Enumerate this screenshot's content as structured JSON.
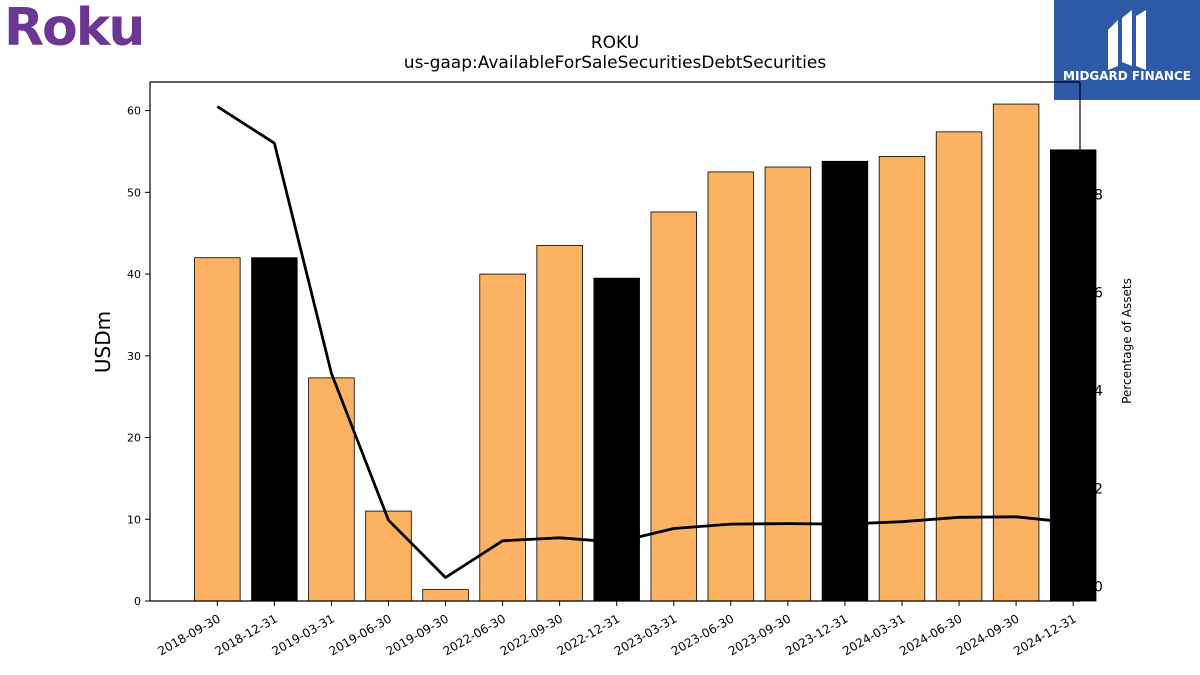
{
  "branding": {
    "left_logo_text": "Roku",
    "left_logo_color": "#6c3794",
    "right_logo_text": "MIDGARD FINANCE",
    "right_logo_bg": "#2e5aa8"
  },
  "chart_data": {
    "type": "bar",
    "title": "ROKU",
    "subtitle": "us-gaap:AvailableForSaleSecuritiesDebtSecurities",
    "ylabel": "USDm",
    "y2label": "Percentage of Assets",
    "categories": [
      "2018-09-30",
      "2018-12-31",
      "2019-03-31",
      "2019-06-30",
      "2019-09-30",
      "2022-06-30",
      "2022-09-30",
      "2022-12-31",
      "2023-03-31",
      "2023-06-30",
      "2023-09-30",
      "2023-12-31",
      "2024-03-31",
      "2024-06-30",
      "2024-09-30",
      "2024-12-31"
    ],
    "series": [
      {
        "type": "bar",
        "values": [
          42.0,
          42.0,
          27.3,
          11.0,
          1.4,
          40.0,
          43.5,
          39.5,
          47.6,
          52.5,
          53.1,
          53.8,
          54.4,
          57.4,
          60.8,
          55.2
        ]
      },
      {
        "type": "line",
        "axis": "right",
        "values": [
          9.8,
          9.05,
          4.35,
          1.35,
          0.18,
          0.93,
          0.99,
          0.9,
          1.18,
          1.27,
          1.28,
          1.27,
          1.32,
          1.41,
          1.42,
          1.3
        ]
      }
    ],
    "bar_colors": [
      "#fbb363",
      "#000000",
      "#fbb363",
      "#fbb363",
      "#fbb363",
      "#fbb363",
      "#fbb363",
      "#000000",
      "#fbb363",
      "#fbb363",
      "#fbb363",
      "#000000",
      "#fbb363",
      "#fbb363",
      "#fbb363",
      "#000000"
    ],
    "line_color": "#000000",
    "ylim": [
      0,
      63.5
    ],
    "y2lim": [
      -0.3,
      10.3
    ],
    "yticks": [
      0,
      10,
      20,
      30,
      40,
      50,
      60
    ],
    "y2ticks": [
      0,
      2,
      4,
      6,
      8
    ],
    "grid": false,
    "legend": "none"
  }
}
